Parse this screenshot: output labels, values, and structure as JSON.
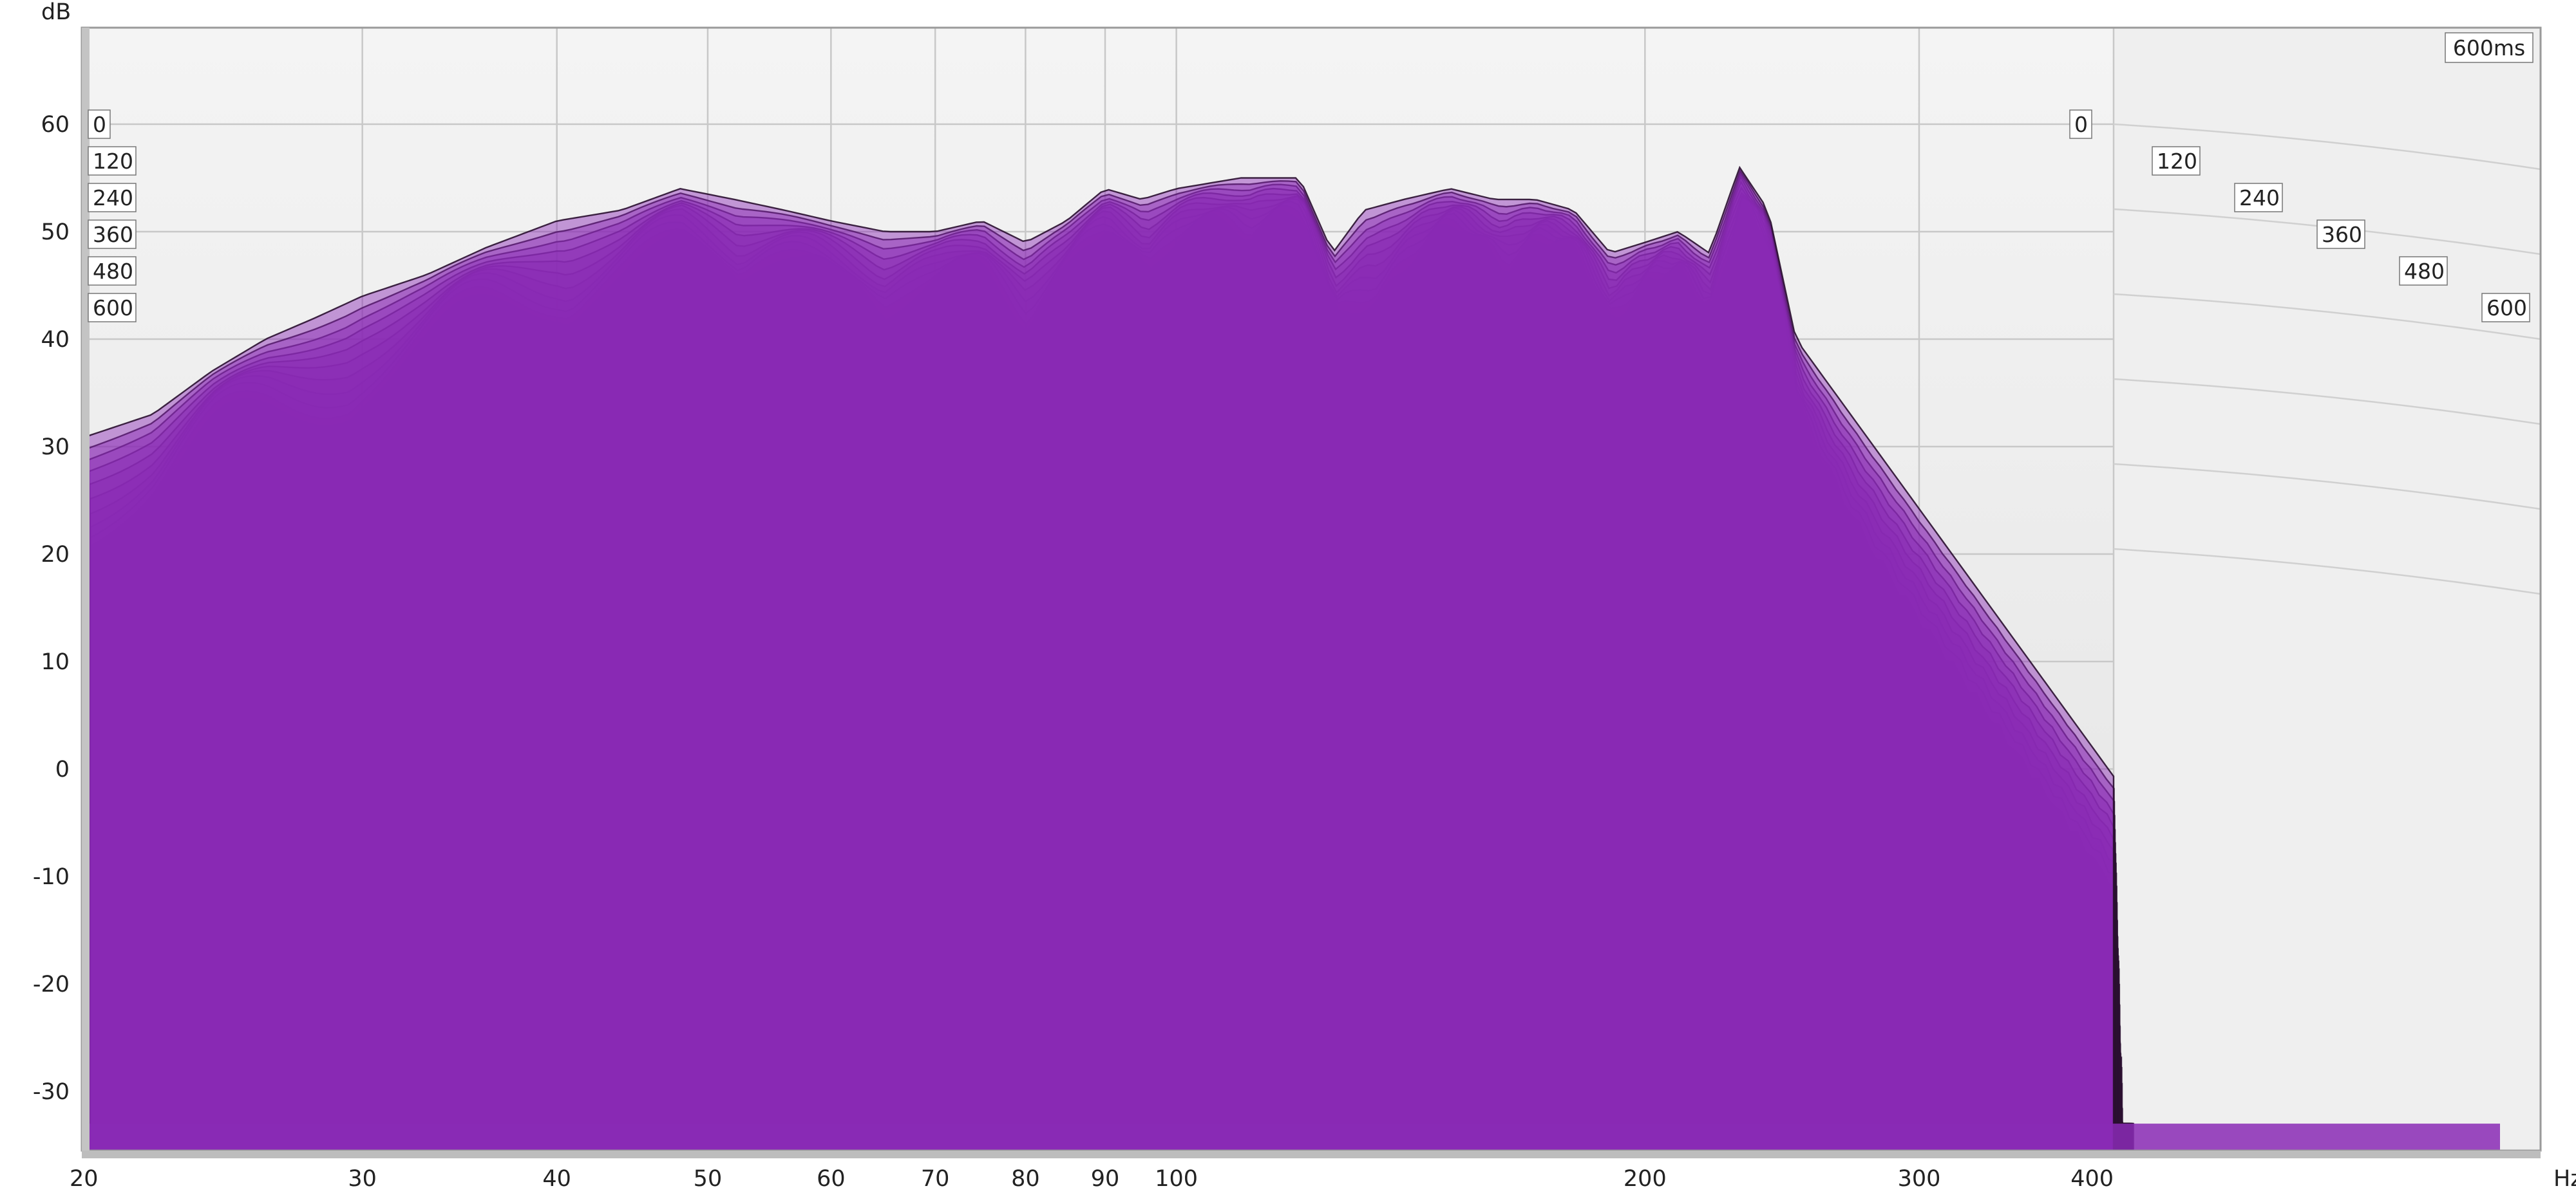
{
  "chart_data": {
    "type": "waterfall",
    "title": "",
    "y_unit_label": "dB",
    "x_unit_label": "Hz",
    "x_scale": "log",
    "xlim": [
      20,
      400
    ],
    "ylim": [
      -35,
      70
    ],
    "x_ticks": [
      20,
      30,
      40,
      50,
      60,
      70,
      80,
      90,
      100,
      200,
      300,
      400
    ],
    "x_tick_labels": [
      "20",
      "30",
      "40",
      "50",
      "60",
      "70",
      "80",
      "90",
      "100",
      "200",
      "300",
      "400"
    ],
    "y_ticks": [
      60,
      50,
      40,
      30,
      20,
      10,
      0,
      -10,
      -20,
      -30
    ],
    "y_tick_labels": [
      "60",
      "50",
      "40",
      "30",
      "20",
      "10",
      "0",
      "-10",
      "-20",
      "-30"
    ],
    "time_label_left": [
      "0",
      "120",
      "240",
      "360",
      "480",
      "600"
    ],
    "time_label_right": [
      "0",
      "120",
      "240",
      "360",
      "480",
      "600"
    ],
    "time_range_ms": [
      0,
      600
    ],
    "time_range_label": "600ms",
    "slice_count": 60,
    "grid": true,
    "fill_color": "#8a2ab5",
    "envelope_first_slice": {
      "freq_hz": [
        20,
        22,
        24,
        26,
        28,
        30,
        33,
        36,
        40,
        44,
        48,
        52,
        56,
        60,
        65,
        70,
        75,
        80,
        85,
        90,
        95,
        100,
        110,
        120,
        126,
        132,
        140,
        150,
        160,
        170,
        180,
        190,
        200,
        210,
        220,
        230,
        240,
        250
      ],
      "level_db": [
        31,
        33,
        37,
        40,
        42,
        44,
        46,
        48.5,
        51,
        52,
        54,
        53,
        52,
        51,
        50,
        50,
        51,
        49,
        51,
        54,
        53,
        54,
        55,
        55,
        48,
        52,
        53,
        54,
        53,
        53,
        52,
        48,
        49,
        50,
        48,
        56,
        52,
        40
      ]
    }
  }
}
